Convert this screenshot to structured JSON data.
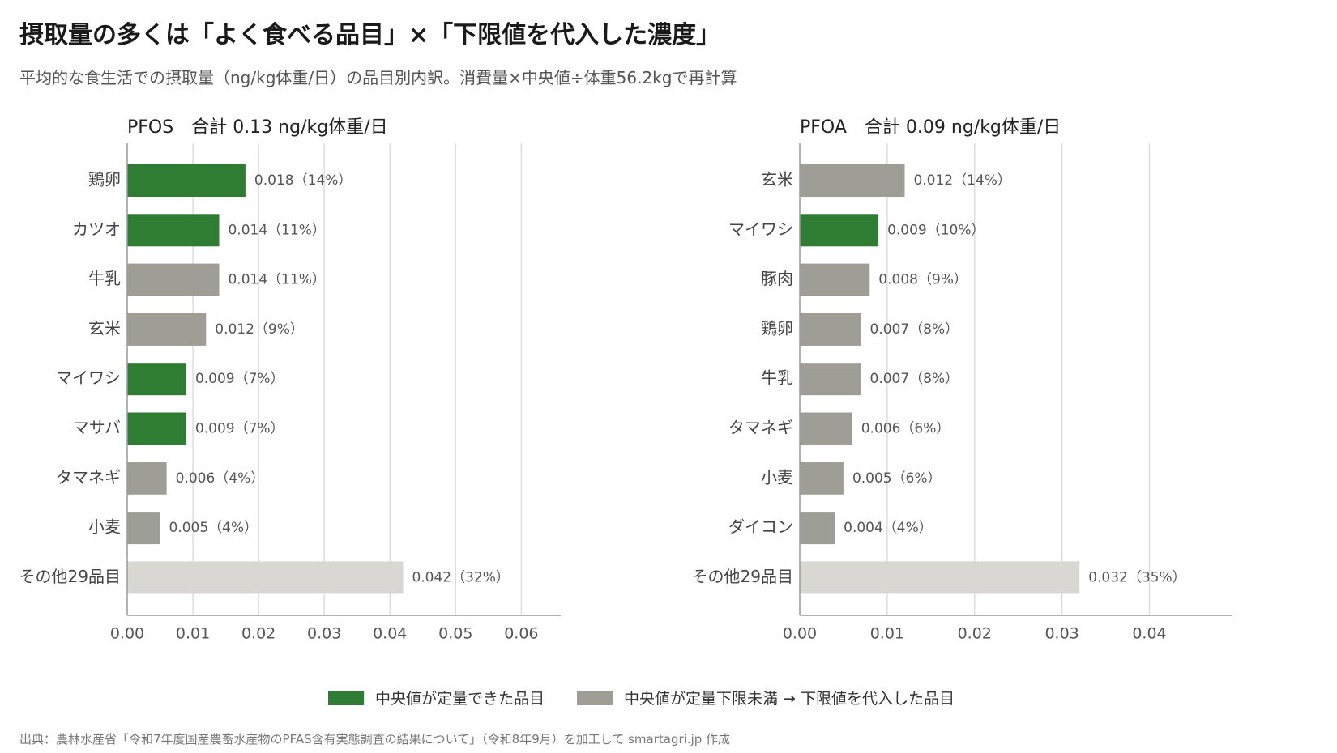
{
  "title": "摂取量の多くは「よく食べる品目」×「下限値を代入した濃度」",
  "subtitle": "平均的な食生活での摂取量（ng/kg体重/日）の品目別内訳。消費量×中央値÷体重56.2kgで再計算",
  "colors": {
    "quantified": "#2e7d32",
    "lower_limit": "#9e9e96",
    "other": "#d8d7d2",
    "grid": "#dddddd",
    "axis": "#9a9a9a"
  },
  "legend": {
    "quantified_label": "中央値が定量できた品目",
    "lower_limit_label": "中央値が定量下限未満 → 下限値を代入した品目"
  },
  "source": "出典：農林水産省「令和7年度国産農畜水産物のPFAS含有実態調査の結果について」（令和8年9月）を加工して smartagri.jp 作成",
  "chart_data": [
    {
      "type": "bar",
      "orientation": "horizontal",
      "title": "PFOS　合計 0.13 ng/kg体重/日",
      "categories": [
        "鶏卵",
        "カツオ",
        "牛乳",
        "玄米",
        "マイワシ",
        "マサバ",
        "タマネギ",
        "小麦",
        "その他29品目"
      ],
      "values": [
        0.018,
        0.014,
        0.014,
        0.012,
        0.009,
        0.009,
        0.006,
        0.005,
        0.042
      ],
      "value_labels": [
        "0.018（14%）",
        "0.014（11%）",
        "0.014（11%）",
        "0.012（9%）",
        "0.009（7%）",
        "0.009（7%）",
        "0.006（4%）",
        "0.005（4%）",
        "0.042（32%）"
      ],
      "status": [
        "quantified",
        "quantified",
        "lower_limit",
        "lower_limit",
        "quantified",
        "quantified",
        "lower_limit",
        "lower_limit",
        "other"
      ],
      "xticks": [
        "0.00",
        "0.01",
        "0.02",
        "0.03",
        "0.04",
        "0.05",
        "0.06"
      ],
      "xlim": [
        0,
        0.066
      ],
      "grid": true
    },
    {
      "type": "bar",
      "orientation": "horizontal",
      "title": "PFOA　合計 0.09 ng/kg体重/日",
      "categories": [
        "玄米",
        "マイワシ",
        "豚肉",
        "鶏卵",
        "牛乳",
        "タマネギ",
        "小麦",
        "ダイコン",
        "その他29品目"
      ],
      "values": [
        0.012,
        0.009,
        0.008,
        0.007,
        0.007,
        0.006,
        0.005,
        0.004,
        0.032
      ],
      "value_labels": [
        "0.012（14%）",
        "0.009（10%）",
        "0.008（9%）",
        "0.007（8%）",
        "0.007（8%）",
        "0.006（6%）",
        "0.005（6%）",
        "0.004（4%）",
        "0.032（35%）"
      ],
      "status": [
        "lower_limit",
        "quantified",
        "lower_limit",
        "lower_limit",
        "lower_limit",
        "lower_limit",
        "lower_limit",
        "lower_limit",
        "other"
      ],
      "xticks": [
        "0.00",
        "0.01",
        "0.02",
        "0.03",
        "0.04"
      ],
      "xlim": [
        0,
        0.0495
      ],
      "grid": true
    }
  ]
}
